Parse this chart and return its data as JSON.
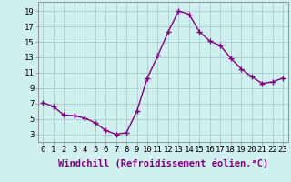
{
  "x": [
    0,
    1,
    2,
    3,
    4,
    5,
    6,
    7,
    8,
    9,
    10,
    11,
    12,
    13,
    14,
    15,
    16,
    17,
    18,
    19,
    20,
    21,
    22,
    23
  ],
  "y": [
    7.1,
    6.6,
    5.5,
    5.4,
    5.1,
    4.5,
    3.5,
    3.0,
    3.2,
    6.0,
    10.3,
    13.2,
    16.3,
    19.0,
    18.6,
    16.3,
    15.1,
    14.5,
    12.9,
    11.5,
    10.5,
    9.6,
    9.8,
    10.3
  ],
  "line_color": "#800080",
  "marker": "+",
  "marker_size": 4,
  "bg_color": "#d0f0f0",
  "grid_color": "#aacccc",
  "xlabel": "Windchill (Refroidissement éolien,°C)",
  "xlabel_fontsize": 7.5,
  "ytick_values": [
    3,
    5,
    7,
    9,
    11,
    13,
    15,
    17,
    19
  ],
  "xtick_values": [
    0,
    1,
    2,
    3,
    4,
    5,
    6,
    7,
    8,
    9,
    10,
    11,
    12,
    13,
    14,
    15,
    16,
    17,
    18,
    19,
    20,
    21,
    22,
    23
  ],
  "ylim": [
    2.0,
    20.2
  ],
  "xlim": [
    -0.5,
    23.5
  ],
  "tick_fontsize": 6.5,
  "spine_color": "#888888",
  "line_width": 1.0
}
